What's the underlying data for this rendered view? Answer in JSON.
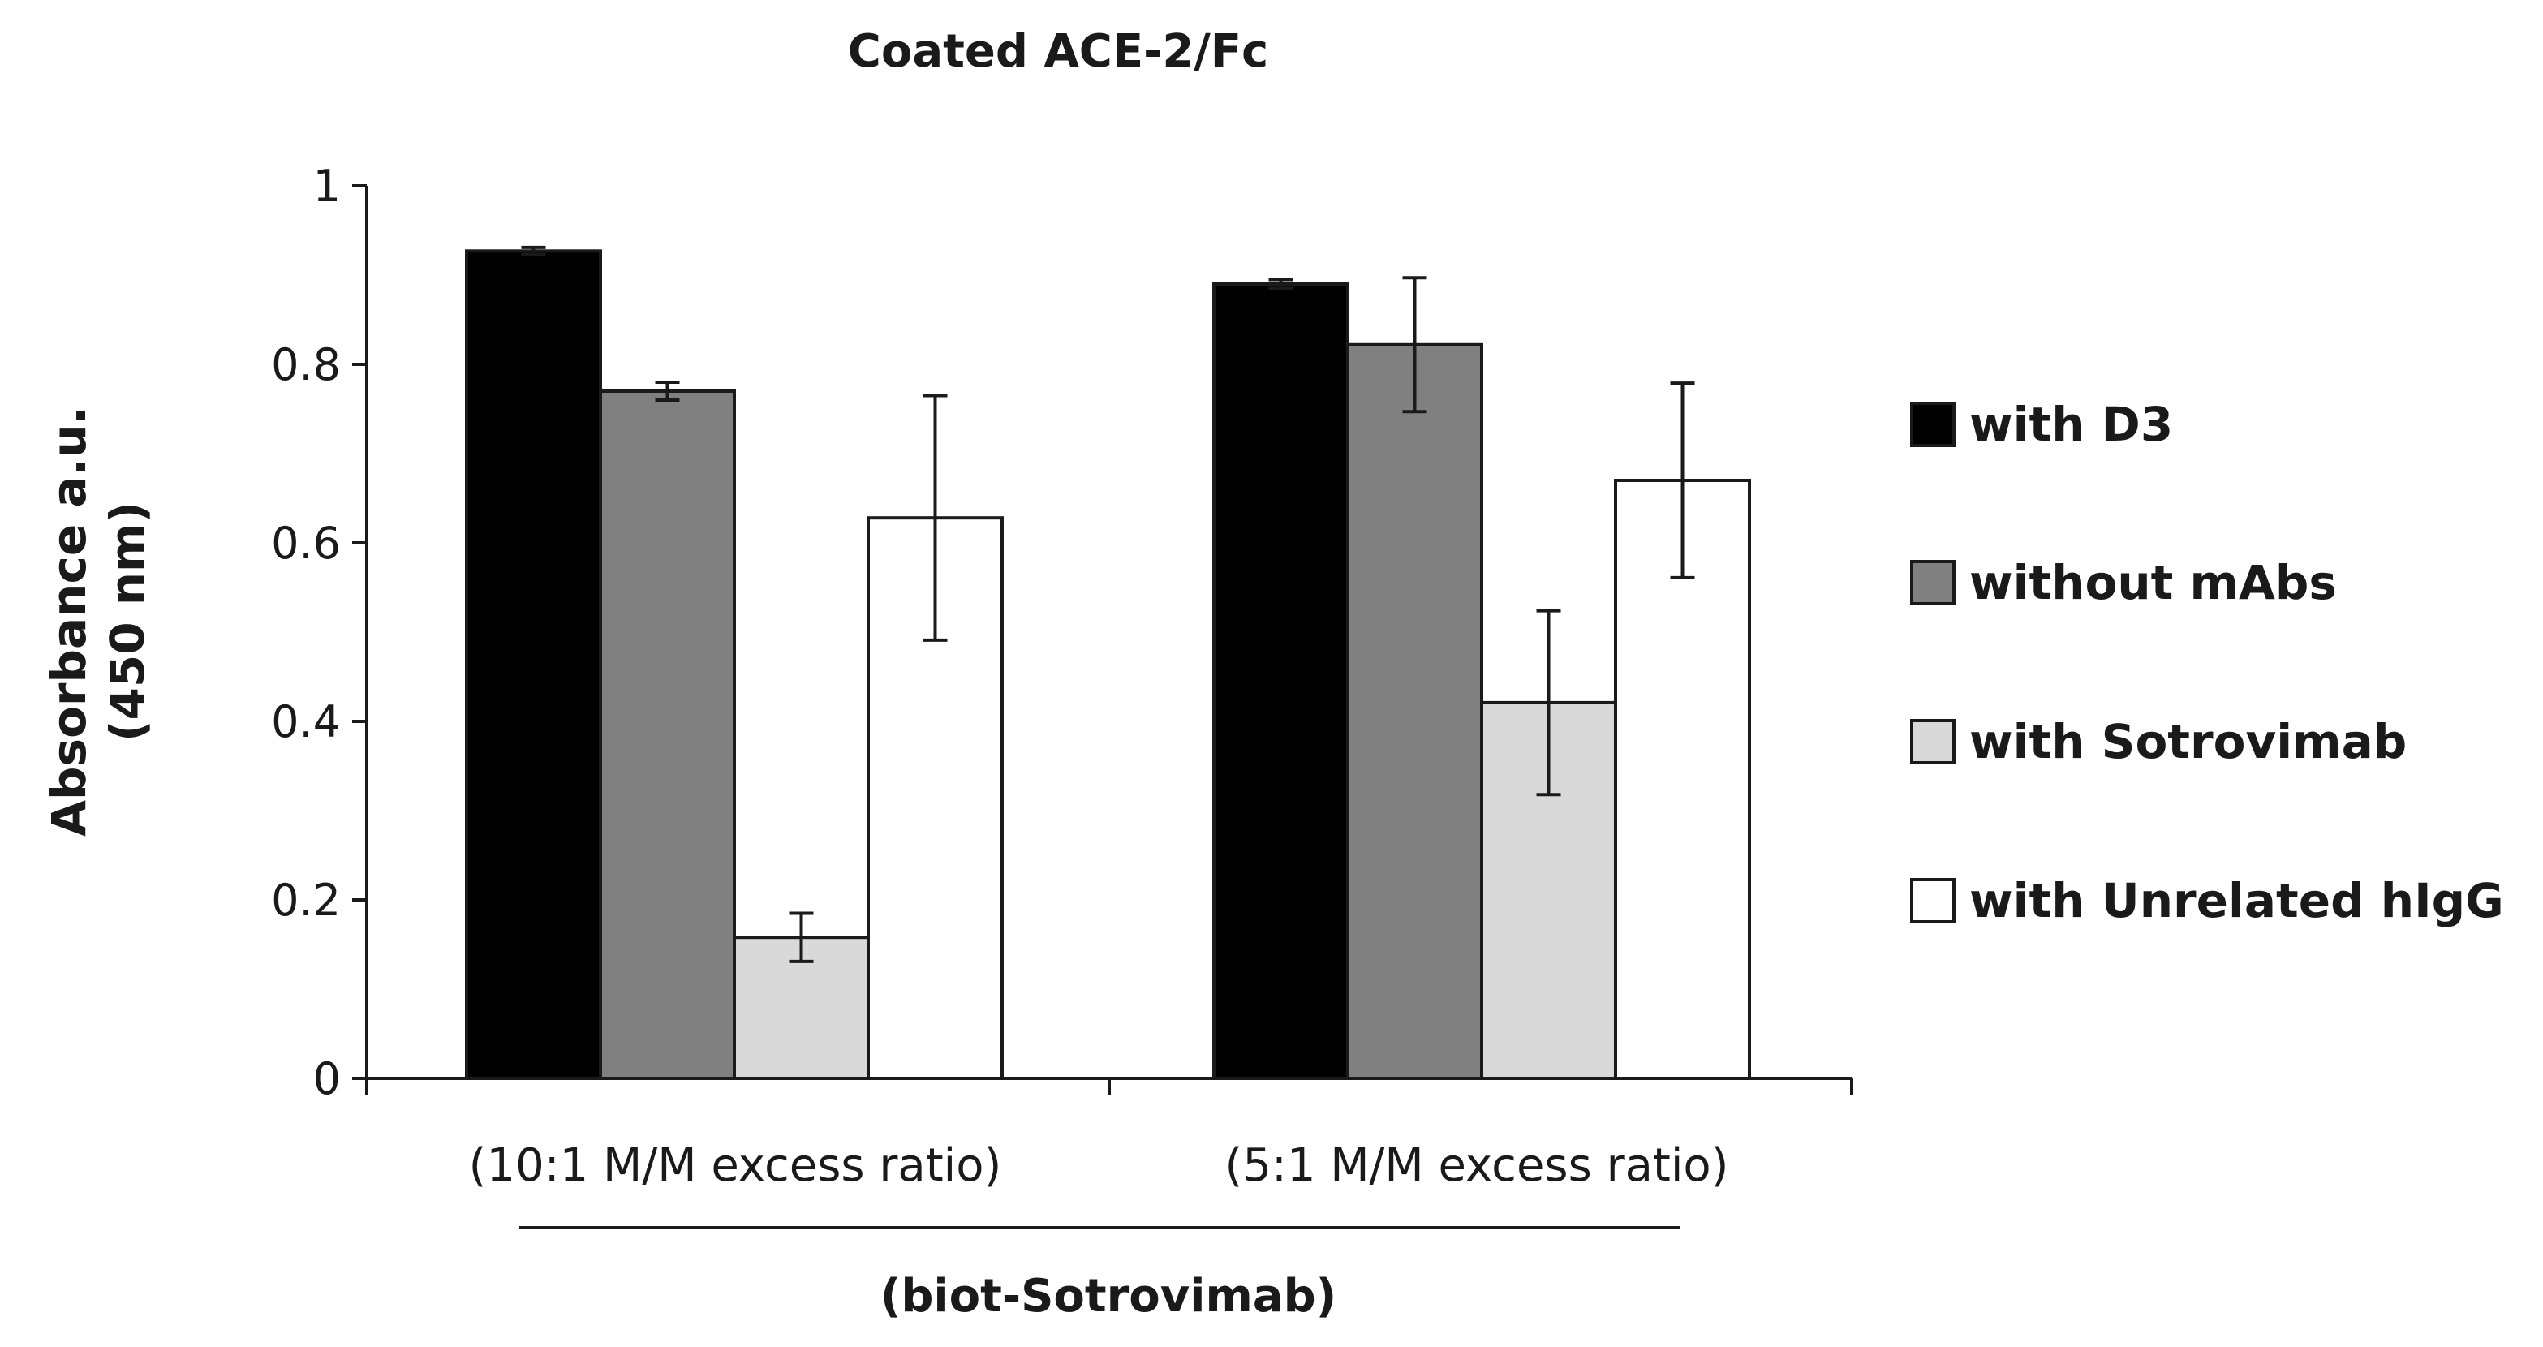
{
  "chart_data": {
    "type": "bar",
    "title": "Coated ACE-2/Fc",
    "ylabel_line1": "Absorbance a.u.",
    "ylabel_line2": "(450 nm)",
    "group_label": "(biot-Sotrovimab)",
    "categories": [
      "(10:1 M/M excess ratio)",
      "(5:1 M/M excess ratio)"
    ],
    "ylim": [
      0,
      1
    ],
    "yticks": [
      "0",
      "0.2",
      "0.4",
      "0.6",
      "0.8",
      "1"
    ],
    "series": [
      {
        "name": "with D3",
        "color": "#000000",
        "values": [
          0.927,
          0.89
        ],
        "errors": [
          0.004,
          0.005
        ]
      },
      {
        "name": "without mAbs",
        "color": "#808080",
        "values": [
          0.77,
          0.822
        ],
        "errors": [
          0.01,
          0.075
        ]
      },
      {
        "name": "with Sotrovimab",
        "color": "#d9d9d9",
        "values": [
          0.158,
          0.421
        ],
        "errors": [
          0.027,
          0.103
        ]
      },
      {
        "name": "with Unrelated hIgG",
        "color": "#ffffff",
        "values": [
          0.628,
          0.67
        ],
        "errors": [
          0.137,
          0.109
        ]
      }
    ],
    "grid": false,
    "legend_position": "right"
  }
}
